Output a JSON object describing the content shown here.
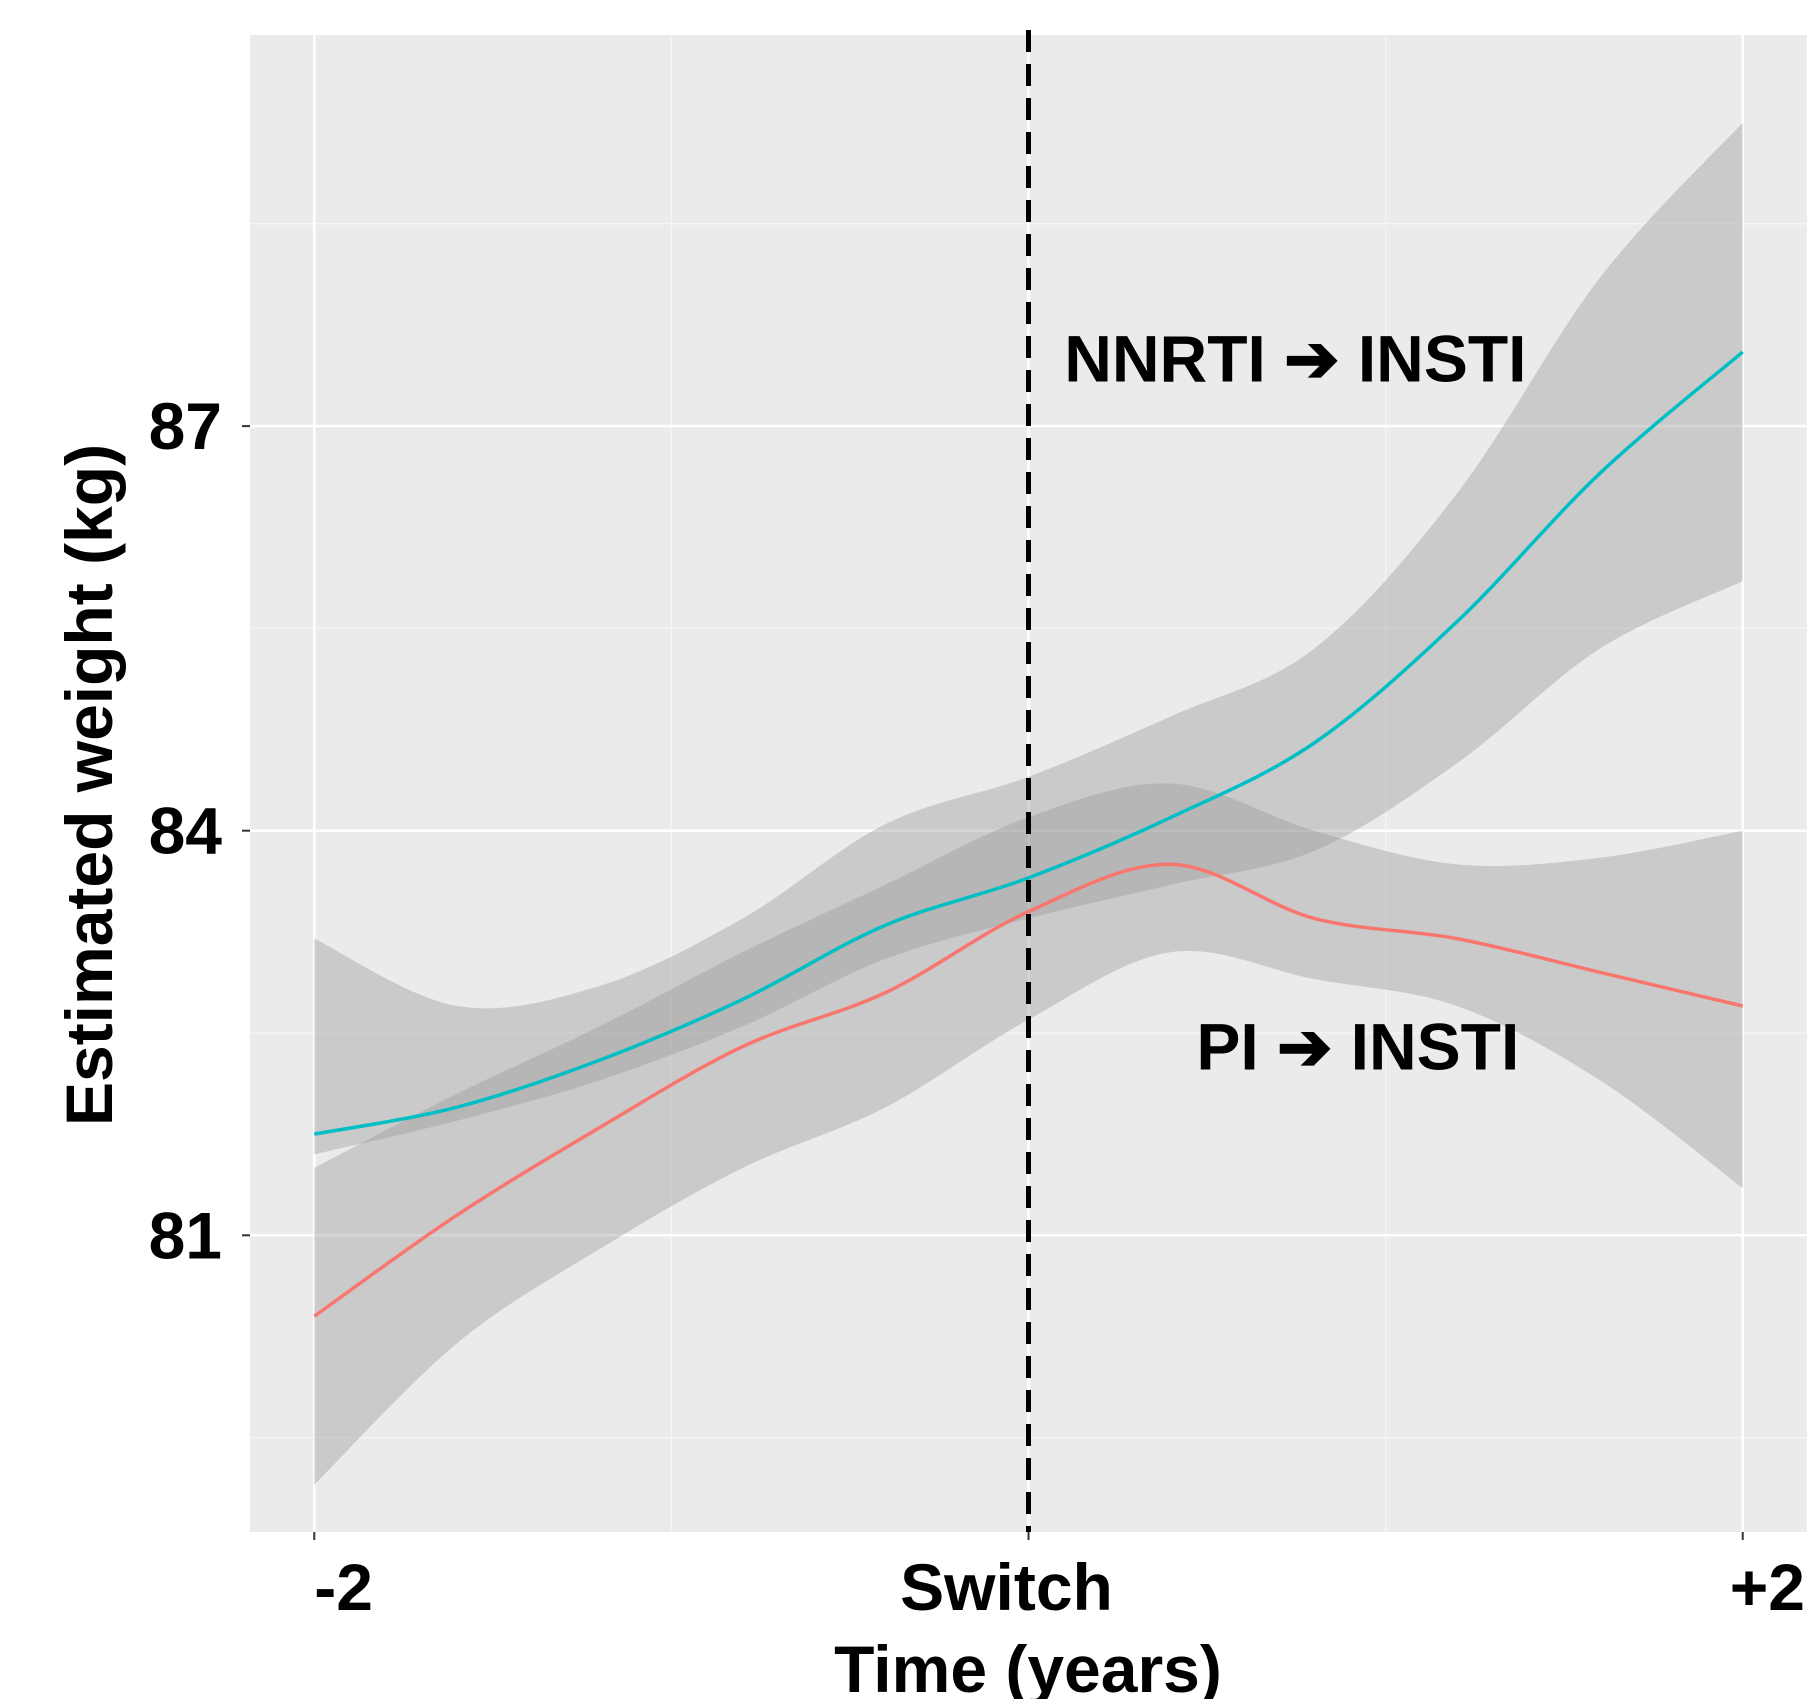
{
  "chart_data": {
    "type": "line",
    "title": "",
    "xlabel": "Time (years)",
    "ylabel": "Estimated weight (kg)",
    "xlim": [
      -2.18,
      2.18
    ],
    "ylim": [
      78.8,
      89.9
    ],
    "x_ticks": [
      {
        "value": -2,
        "label": "-2"
      },
      {
        "value": 0,
        "label": "Switch"
      },
      {
        "value": 2,
        "label": "+2"
      }
    ],
    "y_ticks": [
      {
        "value": 81,
        "label": "81"
      },
      {
        "value": 84,
        "label": "84"
      },
      {
        "value": 87,
        "label": "87"
      }
    ],
    "grid": true,
    "reference_line": {
      "x": 0,
      "style": "dashed"
    },
    "series": [
      {
        "name": "NNRTI ➔ INSTI",
        "color": "#00BFC4",
        "x": [
          -2.0,
          -1.6,
          -1.2,
          -0.8,
          -0.4,
          0.0,
          0.4,
          0.8,
          1.2,
          1.6,
          2.0
        ],
        "y": [
          81.75,
          81.95,
          82.3,
          82.75,
          83.3,
          83.65,
          84.1,
          84.65,
          85.55,
          86.65,
          87.55
        ],
        "ci_lower": [
          81.6,
          81.85,
          82.15,
          82.55,
          83.05,
          83.35,
          83.6,
          83.85,
          84.5,
          85.35,
          85.85
        ],
        "ci_upper": [
          83.2,
          82.7,
          82.85,
          83.35,
          84.05,
          84.4,
          84.85,
          85.35,
          86.5,
          88.1,
          89.25
        ]
      },
      {
        "name": "PI ➔ INSTI",
        "color": "#F8766D",
        "x": [
          -2.0,
          -1.6,
          -1.2,
          -0.8,
          -0.4,
          0.0,
          0.4,
          0.8,
          1.2,
          1.6,
          2.0
        ],
        "y": [
          80.4,
          81.15,
          81.8,
          82.4,
          82.8,
          83.4,
          83.75,
          83.35,
          83.2,
          82.95,
          82.7
        ],
        "ci_lower": [
          79.15,
          80.2,
          80.9,
          81.5,
          81.95,
          82.6,
          83.1,
          82.9,
          82.7,
          82.15,
          81.35
        ],
        "ci_upper": [
          81.5,
          82.05,
          82.55,
          83.1,
          83.6,
          84.1,
          84.35,
          84.0,
          83.75,
          83.8,
          84.0
        ]
      }
    ],
    "annotations": [
      {
        "text": "NNRTI ➔ INSTI",
        "x": 0.1,
        "y": 87.5
      },
      {
        "text": "PI ➔ INSTI",
        "x": 0.47,
        "y": 82.4
      }
    ]
  }
}
